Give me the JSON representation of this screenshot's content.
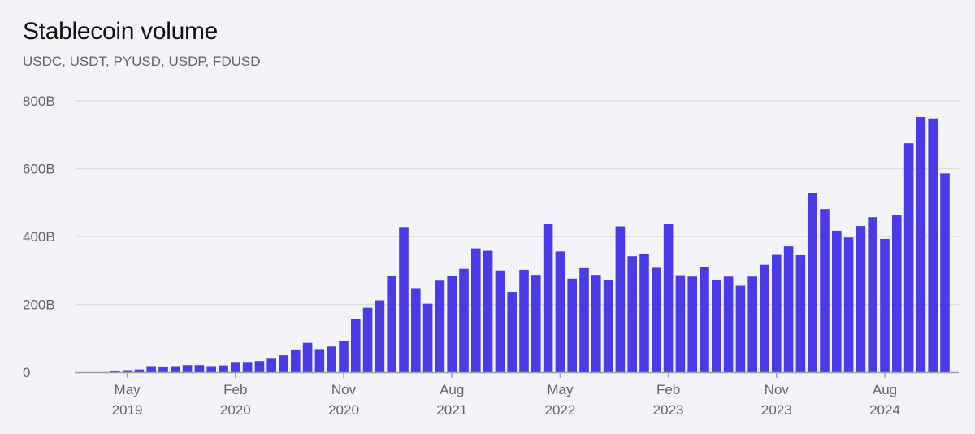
{
  "title": "Stablecoin volume",
  "subtitle": "USDC, USDT, PYUSD, USDP, FDUSD",
  "colors": {
    "bar": "#4b3be6",
    "grid": "#d9dde8",
    "axis": "#9aa0ad"
  },
  "chart_data": {
    "type": "bar",
    "title": "Stablecoin volume",
    "subtitle": "USDC, USDT, PYUSD, USDP, FDUSD",
    "xlabel": "",
    "ylabel": "",
    "ylim": [
      0,
      800
    ],
    "y_unit": "B",
    "grid": true,
    "legend": "none",
    "y_ticks": [
      {
        "value": 0,
        "label": "0"
      },
      {
        "value": 200,
        "label": "200B"
      },
      {
        "value": 400,
        "label": "400B"
      },
      {
        "value": 600,
        "label": "600B"
      },
      {
        "value": 800,
        "label": "800B"
      }
    ],
    "x_ticks": [
      {
        "index": 1,
        "month": "May",
        "year": "2019"
      },
      {
        "index": 10,
        "month": "Feb",
        "year": "2020"
      },
      {
        "index": 19,
        "month": "Nov",
        "year": "2020"
      },
      {
        "index": 28,
        "month": "Aug",
        "year": "2021"
      },
      {
        "index": 37,
        "month": "May",
        "year": "2022"
      },
      {
        "index": 46,
        "month": "Feb",
        "year": "2023"
      },
      {
        "index": 55,
        "month": "Nov",
        "year": "2023"
      },
      {
        "index": 64,
        "month": "Aug",
        "year": "2024"
      }
    ],
    "categories": [
      "2019-04",
      "2019-05",
      "2019-06",
      "2019-07",
      "2019-08",
      "2019-09",
      "2019-10",
      "2019-11",
      "2019-12",
      "2020-01",
      "2020-02",
      "2020-03",
      "2020-04",
      "2020-05",
      "2020-06",
      "2020-07",
      "2020-08",
      "2020-09",
      "2020-10",
      "2020-11",
      "2020-12",
      "2021-01",
      "2021-02",
      "2021-03",
      "2021-04",
      "2021-05",
      "2021-06",
      "2021-07",
      "2021-08",
      "2021-09",
      "2021-10",
      "2021-11",
      "2021-12",
      "2022-01",
      "2022-02",
      "2022-03",
      "2022-04",
      "2022-05",
      "2022-06",
      "2022-07",
      "2022-08",
      "2022-09",
      "2022-10",
      "2022-11",
      "2022-12",
      "2023-01",
      "2023-02",
      "2023-03",
      "2023-04",
      "2023-05",
      "2023-06",
      "2023-07",
      "2023-08",
      "2023-09",
      "2023-10",
      "2023-11",
      "2023-12",
      "2024-01",
      "2024-02",
      "2024-03",
      "2024-04",
      "2024-05",
      "2024-06",
      "2024-07",
      "2024-08",
      "2024-09",
      "2024-10",
      "2024-11",
      "2024-12",
      "2025-01"
    ],
    "values": [
      5,
      6,
      8,
      18,
      17,
      18,
      21,
      21,
      18,
      20,
      28,
      28,
      33,
      40,
      50,
      65,
      87,
      66,
      76,
      92,
      157,
      190,
      212,
      285,
      428,
      248,
      202,
      270,
      285,
      305,
      365,
      358,
      300,
      237,
      302,
      287,
      438,
      356,
      276,
      307,
      287,
      271,
      430,
      342,
      348,
      308,
      438,
      286,
      282,
      311,
      273,
      282,
      255,
      282,
      317,
      346,
      371,
      345,
      527,
      481,
      417,
      397,
      431,
      457,
      393,
      463,
      675,
      752,
      748,
      586
    ]
  }
}
